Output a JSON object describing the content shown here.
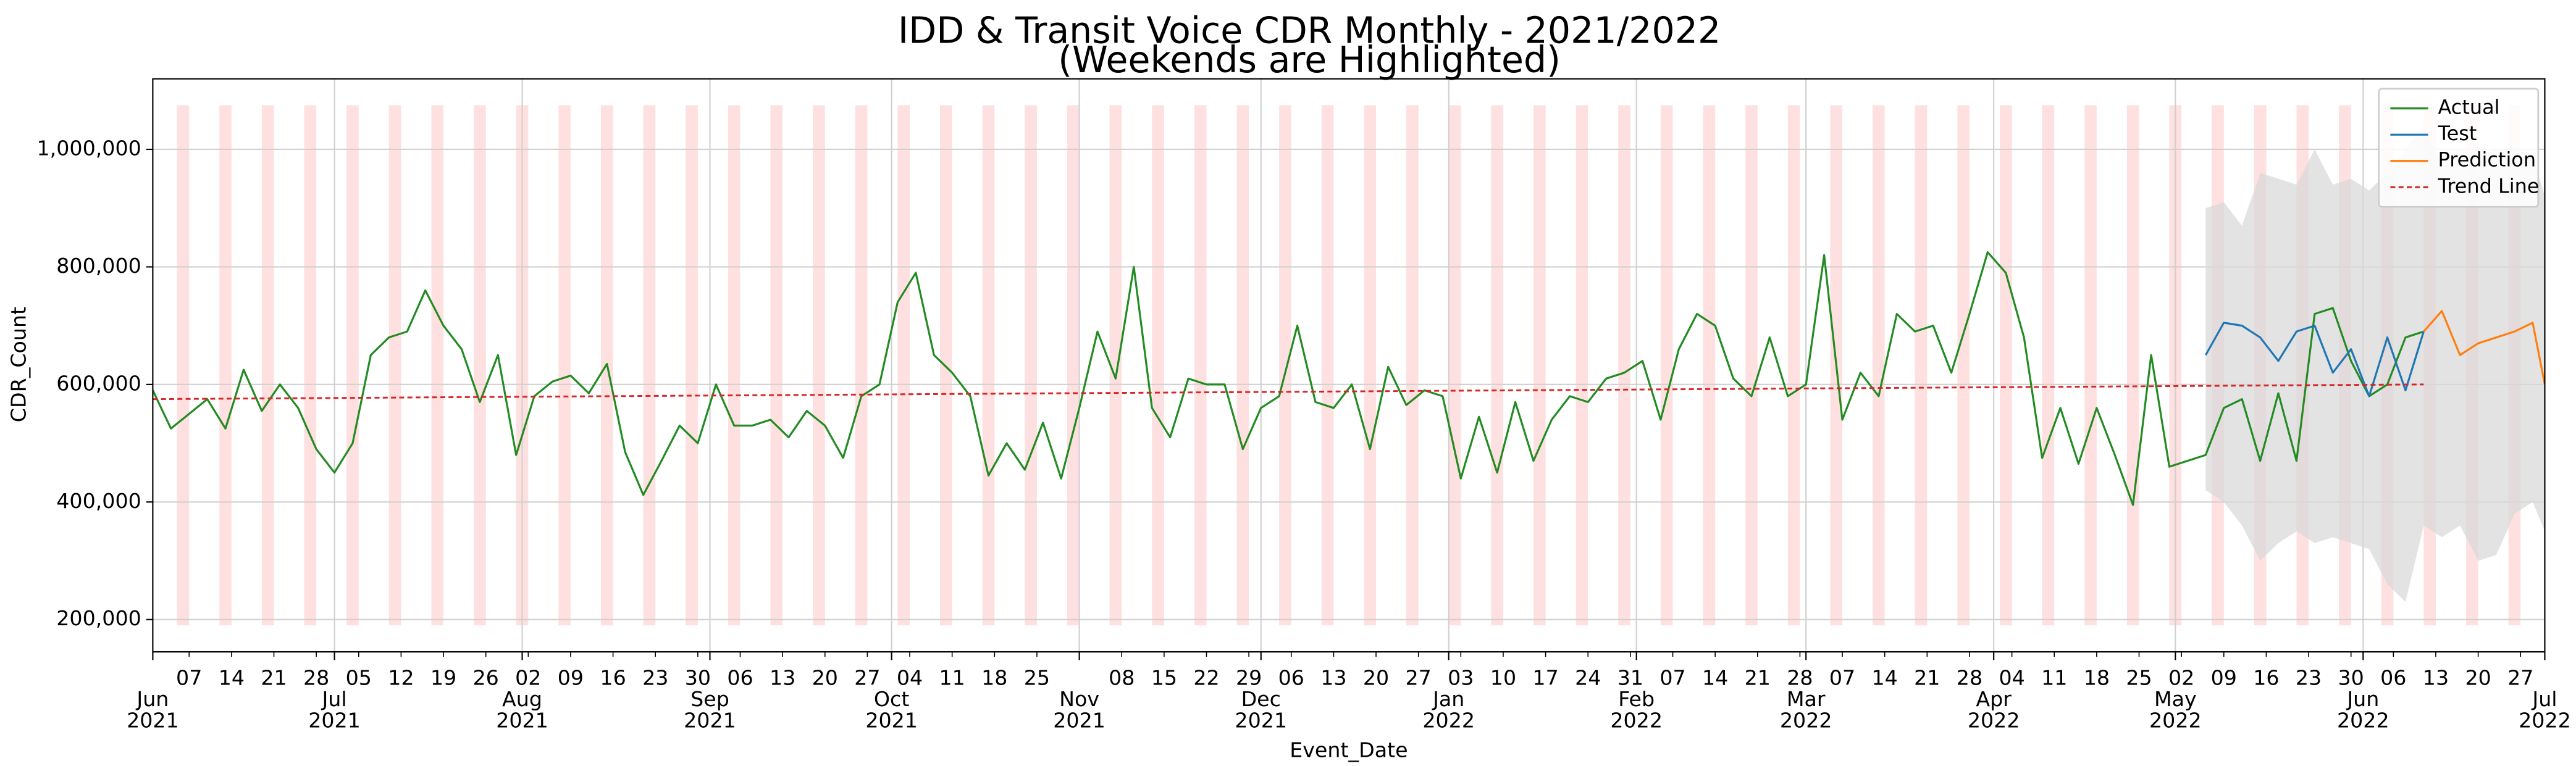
{
  "chart_data": {
    "type": "line",
    "title": "IDD & Transit Voice CDR Monthly - 2021/2022",
    "subtitle": "(Weekends are Highlighted)",
    "x_label": "Event_Date",
    "y_label": "CDR_Count",
    "xlim": [
      "2021-06-01",
      "2022-07-01"
    ],
    "ylim": [
      145000,
      1120000
    ],
    "yticks": [
      {
        "value": 200000,
        "label": "200,000"
      },
      {
        "value": 400000,
        "label": "400,000"
      },
      {
        "value": 600000,
        "label": "600,000"
      },
      {
        "value": 800000,
        "label": "800,000"
      },
      {
        "value": 1000000,
        "label": "1,000,000"
      }
    ],
    "xticks": [
      {
        "value": "2021-06-01",
        "label": [
          "Jun",
          "2021"
        ]
      },
      {
        "value": "2021-07-01",
        "label": [
          "Jul",
          "2021"
        ]
      },
      {
        "value": "2021-08-01",
        "label": [
          "Aug",
          "2021"
        ]
      },
      {
        "value": "2021-09-01",
        "label": [
          "Sep",
          "2021"
        ]
      },
      {
        "value": "2021-10-01",
        "label": [
          "Oct",
          "2021"
        ]
      },
      {
        "value": "2021-11-01",
        "label": [
          "Nov",
          "2021"
        ]
      },
      {
        "value": "2021-12-01",
        "label": [
          "Dec",
          "2021"
        ]
      },
      {
        "value": "2022-01-01",
        "label": [
          "Jan",
          "2022"
        ]
      },
      {
        "value": "2022-02-01",
        "label": [
          "Feb",
          "2022"
        ]
      },
      {
        "value": "2022-03-01",
        "label": [
          "Mar",
          "2022"
        ]
      },
      {
        "value": "2022-04-01",
        "label": [
          "Apr",
          "2022"
        ]
      },
      {
        "value": "2022-05-01",
        "label": [
          "May",
          "2022"
        ]
      },
      {
        "value": "2022-06-01",
        "label": [
          "Jun",
          "2022"
        ]
      },
      {
        "value": "2022-07-01",
        "label": [
          "Jul",
          "2022"
        ]
      }
    ],
    "xticks_minor": [
      {
        "value": "2021-06-07",
        "label": "07"
      },
      {
        "value": "2021-06-14",
        "label": "14"
      },
      {
        "value": "2021-06-21",
        "label": "21"
      },
      {
        "value": "2021-06-28",
        "label": "28"
      },
      {
        "value": "2021-07-05",
        "label": "05"
      },
      {
        "value": "2021-07-12",
        "label": "12"
      },
      {
        "value": "2021-07-19",
        "label": "19"
      },
      {
        "value": "2021-07-26",
        "label": "26"
      },
      {
        "value": "2021-08-02",
        "label": "02"
      },
      {
        "value": "2021-08-09",
        "label": "09"
      },
      {
        "value": "2021-08-16",
        "label": "16"
      },
      {
        "value": "2021-08-23",
        "label": "23"
      },
      {
        "value": "2021-08-30",
        "label": "30"
      },
      {
        "value": "2021-09-06",
        "label": "06"
      },
      {
        "value": "2021-09-13",
        "label": "13"
      },
      {
        "value": "2021-09-20",
        "label": "20"
      },
      {
        "value": "2021-09-27",
        "label": "27"
      },
      {
        "value": "2021-10-04",
        "label": "04"
      },
      {
        "value": "2021-10-11",
        "label": "11"
      },
      {
        "value": "2021-10-18",
        "label": "18"
      },
      {
        "value": "2021-10-25",
        "label": "25"
      },
      {
        "value": "2021-11-08",
        "label": "08"
      },
      {
        "value": "2021-11-15",
        "label": "15"
      },
      {
        "value": "2021-11-22",
        "label": "22"
      },
      {
        "value": "2021-11-29",
        "label": "29"
      },
      {
        "value": "2021-12-06",
        "label": "06"
      },
      {
        "value": "2021-12-13",
        "label": "13"
      },
      {
        "value": "2021-12-20",
        "label": "20"
      },
      {
        "value": "2021-12-27",
        "label": "27"
      },
      {
        "value": "2022-01-03",
        "label": "03"
      },
      {
        "value": "2022-01-10",
        "label": "10"
      },
      {
        "value": "2022-01-17",
        "label": "17"
      },
      {
        "value": "2022-01-24",
        "label": "24"
      },
      {
        "value": "2022-01-31",
        "label": "31"
      },
      {
        "value": "2022-02-07",
        "label": "07"
      },
      {
        "value": "2022-02-14",
        "label": "14"
      },
      {
        "value": "2022-02-21",
        "label": "21"
      },
      {
        "value": "2022-02-28",
        "label": "28"
      },
      {
        "value": "2022-03-07",
        "label": "07"
      },
      {
        "value": "2022-03-14",
        "label": "14"
      },
      {
        "value": "2022-03-21",
        "label": "21"
      },
      {
        "value": "2022-03-28",
        "label": "28"
      },
      {
        "value": "2022-04-04",
        "label": "04"
      },
      {
        "value": "2022-04-11",
        "label": "11"
      },
      {
        "value": "2022-04-18",
        "label": "18"
      },
      {
        "value": "2022-04-25",
        "label": "25"
      },
      {
        "value": "2022-05-02",
        "label": "02"
      },
      {
        "value": "2022-05-09",
        "label": "09"
      },
      {
        "value": "2022-05-16",
        "label": "16"
      },
      {
        "value": "2022-05-23",
        "label": "23"
      },
      {
        "value": "2022-05-30",
        "label": "30"
      },
      {
        "value": "2022-06-06",
        "label": "06"
      },
      {
        "value": "2022-06-13",
        "label": "13"
      },
      {
        "value": "2022-06-20",
        "label": "20"
      },
      {
        "value": "2022-06-27",
        "label": "27"
      }
    ],
    "grid": true,
    "legend": "upper right",
    "highlight_color": "#ffe0e0",
    "highlight_ylim": [
      190000,
      1075000
    ],
    "band": {
      "color": "#d9d9d9",
      "x": [
        "2022-05-06",
        "2022-05-09",
        "2022-05-12",
        "2022-05-15",
        "2022-05-18",
        "2022-05-21",
        "2022-05-24",
        "2022-05-27",
        "2022-05-30",
        "2022-06-02",
        "2022-06-05",
        "2022-06-08",
        "2022-06-11",
        "2022-06-14",
        "2022-06-17",
        "2022-06-20",
        "2022-06-23",
        "2022-06-26",
        "2022-06-29",
        "2022-07-01"
      ],
      "upper": [
        900000,
        910000,
        870000,
        960000,
        950000,
        940000,
        1000000,
        940000,
        950000,
        930000,
        960000,
        1000000,
        1040000,
        980000,
        1000000,
        990000,
        1000000,
        1000000,
        990000,
        920000
      ],
      "lower": [
        420000,
        400000,
        360000,
        300000,
        330000,
        350000,
        330000,
        340000,
        330000,
        320000,
        260000,
        230000,
        360000,
        340000,
        360000,
        300000,
        310000,
        380000,
        400000,
        350000
      ]
    },
    "series": [
      {
        "name": "Actual",
        "color": "#228b22",
        "style": "solid",
        "x": [
          "2021-06-01",
          "2021-06-04",
          "2021-06-07",
          "2021-06-10",
          "2021-06-13",
          "2021-06-16",
          "2021-06-19",
          "2021-06-22",
          "2021-06-25",
          "2021-06-28",
          "2021-07-01",
          "2021-07-04",
          "2021-07-07",
          "2021-07-10",
          "2021-07-13",
          "2021-07-16",
          "2021-07-19",
          "2021-07-22",
          "2021-07-25",
          "2021-07-28",
          "2021-07-31",
          "2021-08-03",
          "2021-08-06",
          "2021-08-09",
          "2021-08-12",
          "2021-08-15",
          "2021-08-18",
          "2021-08-21",
          "2021-08-24",
          "2021-08-27",
          "2021-08-30",
          "2021-09-02",
          "2021-09-05",
          "2021-09-08",
          "2021-09-11",
          "2021-09-14",
          "2021-09-17",
          "2021-09-20",
          "2021-09-23",
          "2021-09-26",
          "2021-09-29",
          "2021-10-02",
          "2021-10-05",
          "2021-10-08",
          "2021-10-11",
          "2021-10-14",
          "2021-10-17",
          "2021-10-20",
          "2021-10-23",
          "2021-10-26",
          "2021-10-29",
          "2021-11-01",
          "2021-11-04",
          "2021-11-07",
          "2021-11-10",
          "2021-11-13",
          "2021-11-16",
          "2021-11-19",
          "2021-11-22",
          "2021-11-25",
          "2021-11-28",
          "2021-12-01",
          "2021-12-04",
          "2021-12-07",
          "2021-12-10",
          "2021-12-13",
          "2021-12-16",
          "2021-12-19",
          "2021-12-22",
          "2021-12-25",
          "2021-12-28",
          "2021-12-31",
          "2022-01-03",
          "2022-01-06",
          "2022-01-09",
          "2022-01-12",
          "2022-01-15",
          "2022-01-18",
          "2022-01-21",
          "2022-01-24",
          "2022-01-27",
          "2022-01-30",
          "2022-02-02",
          "2022-02-05",
          "2022-02-08",
          "2022-02-11",
          "2022-02-14",
          "2022-02-17",
          "2022-02-20",
          "2022-02-23",
          "2022-02-26",
          "2022-03-01",
          "2022-03-04",
          "2022-03-07",
          "2022-03-10",
          "2022-03-13",
          "2022-03-16",
          "2022-03-19",
          "2022-03-22",
          "2022-03-25",
          "2022-03-28",
          "2022-03-31",
          "2022-04-03",
          "2022-04-06",
          "2022-04-09",
          "2022-04-12",
          "2022-04-15",
          "2022-04-18",
          "2022-04-21",
          "2022-04-24",
          "2022-04-27",
          "2022-04-30",
          "2022-05-03",
          "2022-05-06",
          "2022-05-09",
          "2022-05-12",
          "2022-05-15",
          "2022-05-18",
          "2022-05-21",
          "2022-05-24",
          "2022-05-27",
          "2022-05-30",
          "2022-06-02",
          "2022-06-05",
          "2022-06-08",
          "2022-06-11"
        ],
        "values": [
          590000,
          525000,
          550000,
          575000,
          525000,
          625000,
          555000,
          600000,
          560000,
          490000,
          450000,
          500000,
          650000,
          680000,
          690000,
          760000,
          700000,
          660000,
          570000,
          650000,
          480000,
          580000,
          605000,
          615000,
          585000,
          635000,
          485000,
          412000,
          470000,
          530000,
          500000,
          600000,
          530000,
          530000,
          540000,
          510000,
          555000,
          530000,
          475000,
          580000,
          600000,
          740000,
          790000,
          650000,
          620000,
          580000,
          445000,
          500000,
          455000,
          535000,
          440000,
          560000,
          690000,
          610000,
          800000,
          560000,
          510000,
          610000,
          600000,
          600000,
          490000,
          560000,
          580000,
          700000,
          570000,
          560000,
          600000,
          490000,
          630000,
          565000,
          590000,
          580000,
          440000,
          545000,
          450000,
          570000,
          470000,
          540000,
          580000,
          570000,
          610000,
          620000,
          640000,
          540000,
          660000,
          720000,
          700000,
          610000,
          580000,
          680000,
          580000,
          600000,
          820000,
          540000,
          620000,
          580000,
          720000,
          690000,
          700000,
          620000,
          720000,
          825000,
          790000,
          680000,
          475000,
          560000,
          465000,
          560000,
          480000,
          395000,
          650000,
          460000,
          470000,
          480000,
          560000,
          575000,
          470000,
          585000,
          470000,
          720000,
          730000,
          640000,
          580000,
          600000,
          680000,
          690000
        ]
      },
      {
        "name": "Test",
        "color": "#1f77b4",
        "style": "solid",
        "x": [
          "2022-05-06",
          "2022-05-09",
          "2022-05-12",
          "2022-05-15",
          "2022-05-18",
          "2022-05-21",
          "2022-05-24",
          "2022-05-27",
          "2022-05-30",
          "2022-06-02",
          "2022-06-05",
          "2022-06-08",
          "2022-06-11"
        ],
        "values": [
          650000,
          705000,
          700000,
          680000,
          640000,
          690000,
          700000,
          620000,
          660000,
          580000,
          680000,
          590000,
          690000
        ]
      },
      {
        "name": "Prediction",
        "color": "#ff7f0e",
        "style": "solid",
        "x": [
          "2022-06-11",
          "2022-06-14",
          "2022-06-17",
          "2022-06-20",
          "2022-06-23",
          "2022-06-26",
          "2022-06-29",
          "2022-07-01"
        ],
        "values": [
          690000,
          725000,
          650000,
          670000,
          680000,
          690000,
          705000,
          600000
        ]
      },
      {
        "name": "Trend Line",
        "color": "#d62728",
        "style": "dashed",
        "x": [
          "2021-06-01",
          "2022-06-11"
        ],
        "values": [
          575000,
          600000
        ]
      }
    ]
  }
}
